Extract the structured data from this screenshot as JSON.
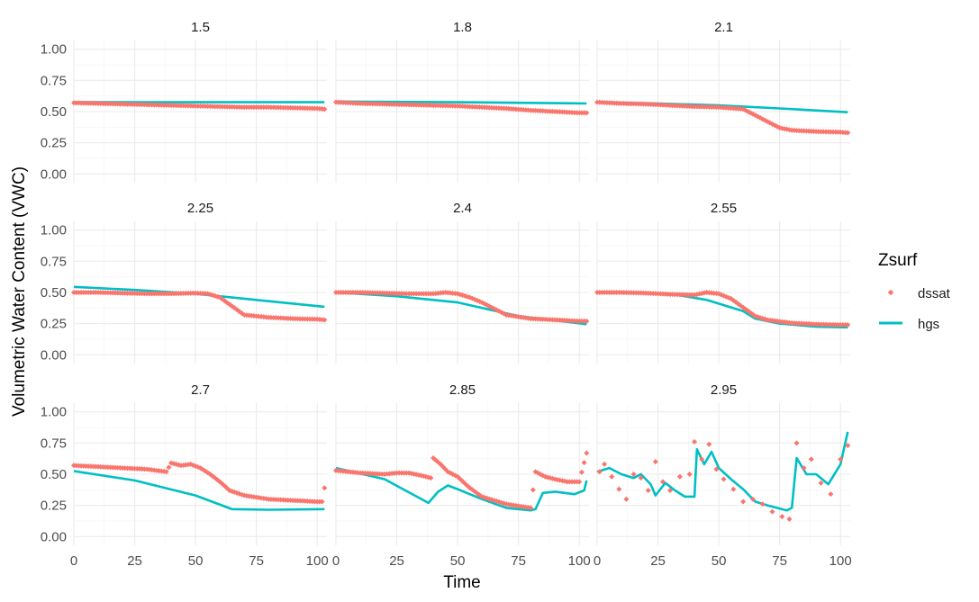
{
  "chart_data": {
    "type": "scatter",
    "xlabel": "Time",
    "ylabel": "Volumetric Water Content (VWC)",
    "xlim": [
      0,
      104
    ],
    "ylim": [
      0,
      1
    ],
    "x_ticks": [
      0,
      25,
      50,
      75,
      100
    ],
    "y_ticks": [
      0,
      0.25,
      0.5,
      0.75,
      1
    ],
    "y_tick_labels": [
      "0.00",
      "0.25",
      "0.50",
      "0.75",
      "1.00"
    ],
    "grid": true,
    "legend": {
      "title": "Zsurf",
      "placement": "right",
      "entries": [
        {
          "label": "dssat",
          "color": "#F8766D",
          "marker": "diamond"
        },
        {
          "label": "hgs",
          "color": "#00BFC4",
          "marker": "line"
        }
      ]
    },
    "panels": [
      {
        "title": "1.5",
        "dssat": [
          [
            0,
            0.57
          ],
          [
            10,
            0.565
          ],
          [
            20,
            0.56
          ],
          [
            30,
            0.555
          ],
          [
            40,
            0.55
          ],
          [
            50,
            0.545
          ],
          [
            60,
            0.54
          ],
          [
            70,
            0.535
          ],
          [
            80,
            0.535
          ],
          [
            90,
            0.53
          ],
          [
            100,
            0.525
          ],
          [
            103,
            0.52
          ]
        ],
        "hgs": [
          [
            0,
            0.575
          ],
          [
            103,
            0.575
          ]
        ]
      },
      {
        "title": "1.8",
        "dssat": [
          [
            0,
            0.575
          ],
          [
            10,
            0.565
          ],
          [
            20,
            0.56
          ],
          [
            30,
            0.555
          ],
          [
            40,
            0.55
          ],
          [
            50,
            0.545
          ],
          [
            60,
            0.535
          ],
          [
            70,
            0.525
          ],
          [
            80,
            0.51
          ],
          [
            90,
            0.5
          ],
          [
            100,
            0.49
          ],
          [
            103,
            0.49
          ]
        ],
        "hgs": [
          [
            0,
            0.58
          ],
          [
            50,
            0.575
          ],
          [
            103,
            0.565
          ]
        ]
      },
      {
        "title": "2.1",
        "dssat": [
          [
            0,
            0.575
          ],
          [
            10,
            0.565
          ],
          [
            20,
            0.56
          ],
          [
            30,
            0.55
          ],
          [
            40,
            0.54
          ],
          [
            50,
            0.535
          ],
          [
            60,
            0.52
          ],
          [
            65,
            0.47
          ],
          [
            70,
            0.42
          ],
          [
            75,
            0.37
          ],
          [
            80,
            0.35
          ],
          [
            90,
            0.34
          ],
          [
            100,
            0.335
          ],
          [
            103,
            0.33
          ]
        ],
        "hgs": [
          [
            0,
            0.575
          ],
          [
            25,
            0.565
          ],
          [
            50,
            0.55
          ],
          [
            75,
            0.525
          ],
          [
            103,
            0.495
          ]
        ]
      },
      {
        "title": "2.25",
        "dssat": [
          [
            0,
            0.5
          ],
          [
            10,
            0.5
          ],
          [
            20,
            0.495
          ],
          [
            30,
            0.49
          ],
          [
            40,
            0.49
          ],
          [
            50,
            0.495
          ],
          [
            55,
            0.49
          ],
          [
            60,
            0.46
          ],
          [
            65,
            0.39
          ],
          [
            70,
            0.32
          ],
          [
            75,
            0.31
          ],
          [
            80,
            0.3
          ],
          [
            90,
            0.29
          ],
          [
            100,
            0.285
          ],
          [
            103,
            0.28
          ]
        ],
        "hgs": [
          [
            0,
            0.545
          ],
          [
            25,
            0.52
          ],
          [
            50,
            0.49
          ],
          [
            75,
            0.44
          ],
          [
            103,
            0.385
          ]
        ]
      },
      {
        "title": "2.4",
        "dssat": [
          [
            0,
            0.5
          ],
          [
            10,
            0.5
          ],
          [
            20,
            0.495
          ],
          [
            30,
            0.49
          ],
          [
            40,
            0.49
          ],
          [
            45,
            0.5
          ],
          [
            50,
            0.49
          ],
          [
            55,
            0.46
          ],
          [
            60,
            0.42
          ],
          [
            65,
            0.37
          ],
          [
            70,
            0.32
          ],
          [
            80,
            0.29
          ],
          [
            90,
            0.28
          ],
          [
            100,
            0.27
          ],
          [
            103,
            0.27
          ]
        ],
        "hgs": [
          [
            0,
            0.5
          ],
          [
            25,
            0.47
          ],
          [
            50,
            0.42
          ],
          [
            75,
            0.31
          ],
          [
            103,
            0.245
          ]
        ]
      },
      {
        "title": "2.55",
        "dssat": [
          [
            0,
            0.5
          ],
          [
            10,
            0.5
          ],
          [
            20,
            0.495
          ],
          [
            30,
            0.485
          ],
          [
            40,
            0.48
          ],
          [
            45,
            0.5
          ],
          [
            50,
            0.49
          ],
          [
            55,
            0.45
          ],
          [
            60,
            0.38
          ],
          [
            65,
            0.31
          ],
          [
            70,
            0.28
          ],
          [
            80,
            0.255
          ],
          [
            90,
            0.245
          ],
          [
            100,
            0.24
          ],
          [
            103,
            0.24
          ]
        ],
        "hgs": [
          [
            0,
            0.505
          ],
          [
            30,
            0.49
          ],
          [
            45,
            0.44
          ],
          [
            60,
            0.35
          ],
          [
            65,
            0.29
          ],
          [
            75,
            0.25
          ],
          [
            90,
            0.225
          ],
          [
            103,
            0.22
          ]
        ]
      },
      {
        "title": "2.7",
        "dssat": [
          [
            0,
            0.57
          ],
          [
            10,
            0.56
          ],
          [
            20,
            0.55
          ],
          [
            30,
            0.54
          ],
          [
            38,
            0.52
          ],
          [
            40,
            0.59
          ],
          [
            44,
            0.57
          ],
          [
            48,
            0.58
          ],
          [
            52,
            0.55
          ],
          [
            56,
            0.5
          ],
          [
            60,
            0.44
          ],
          [
            64,
            0.37
          ],
          [
            70,
            0.33
          ],
          [
            80,
            0.3
          ],
          [
            90,
            0.29
          ],
          [
            100,
            0.28
          ],
          [
            102,
            0.28
          ],
          [
            103,
            0.39
          ]
        ],
        "hgs": [
          [
            0,
            0.525
          ],
          [
            25,
            0.45
          ],
          [
            50,
            0.33
          ],
          [
            65,
            0.22
          ],
          [
            80,
            0.215
          ],
          [
            103,
            0.22
          ]
        ]
      },
      {
        "title": "2.85",
        "dssat": [
          [
            0,
            0.53
          ],
          [
            10,
            0.51
          ],
          [
            20,
            0.5
          ],
          [
            25,
            0.51
          ],
          [
            30,
            0.51
          ],
          [
            35,
            0.49
          ],
          [
            39,
            0.47
          ],
          [
            40,
            0.63
          ],
          [
            43,
            0.58
          ],
          [
            46,
            0.52
          ],
          [
            50,
            0.48
          ],
          [
            55,
            0.39
          ],
          [
            60,
            0.32
          ],
          [
            70,
            0.26
          ],
          [
            80,
            0.23
          ],
          [
            82,
            0.52
          ],
          [
            86,
            0.48
          ],
          [
            90,
            0.46
          ],
          [
            95,
            0.44
          ],
          [
            100,
            0.44
          ],
          [
            103,
            0.67
          ]
        ],
        "hgs": [
          [
            0,
            0.55
          ],
          [
            20,
            0.46
          ],
          [
            38,
            0.27
          ],
          [
            42,
            0.36
          ],
          [
            46,
            0.41
          ],
          [
            50,
            0.38
          ],
          [
            60,
            0.3
          ],
          [
            70,
            0.23
          ],
          [
            80,
            0.21
          ],
          [
            82,
            0.22
          ],
          [
            85,
            0.35
          ],
          [
            90,
            0.36
          ],
          [
            98,
            0.34
          ],
          [
            102,
            0.37
          ],
          [
            103,
            0.45
          ]
        ],
        "dssat_note": ""
      },
      {
        "title": "2.95",
        "dssat": [
          [
            1,
            0.52
          ],
          [
            3,
            0.58
          ],
          [
            6,
            0.48
          ],
          [
            9,
            0.38
          ],
          [
            12,
            0.3
          ],
          [
            15,
            0.5
          ],
          [
            18,
            0.47
          ],
          [
            21,
            0.37
          ],
          [
            24,
            0.6
          ],
          [
            27,
            0.44
          ],
          [
            30,
            0.37
          ],
          [
            34,
            0.48
          ],
          [
            38,
            0.5
          ],
          [
            40,
            0.76
          ],
          [
            43,
            0.62
          ],
          [
            46,
            0.74
          ],
          [
            49,
            0.54
          ],
          [
            52,
            0.46
          ],
          [
            56,
            0.38
          ],
          [
            60,
            0.28
          ],
          [
            64,
            0.3
          ],
          [
            68,
            0.26
          ],
          [
            72,
            0.2
          ],
          [
            76,
            0.16
          ],
          [
            79,
            0.14
          ],
          [
            82,
            0.75
          ],
          [
            85,
            0.55
          ],
          [
            88,
            0.62
          ],
          [
            92,
            0.43
          ],
          [
            96,
            0.34
          ],
          [
            100,
            0.62
          ],
          [
            103,
            0.73
          ]
        ],
        "hgs": [
          [
            0,
            0.52
          ],
          [
            5,
            0.55
          ],
          [
            10,
            0.5
          ],
          [
            15,
            0.47
          ],
          [
            18,
            0.5
          ],
          [
            22,
            0.42
          ],
          [
            24,
            0.33
          ],
          [
            28,
            0.43
          ],
          [
            32,
            0.37
          ],
          [
            36,
            0.32
          ],
          [
            40,
            0.32
          ],
          [
            41,
            0.7
          ],
          [
            44,
            0.58
          ],
          [
            47,
            0.68
          ],
          [
            50,
            0.55
          ],
          [
            55,
            0.46
          ],
          [
            60,
            0.38
          ],
          [
            65,
            0.28
          ],
          [
            70,
            0.25
          ],
          [
            78,
            0.21
          ],
          [
            80,
            0.23
          ],
          [
            82,
            0.63
          ],
          [
            86,
            0.5
          ],
          [
            90,
            0.5
          ],
          [
            95,
            0.42
          ],
          [
            100,
            0.58
          ],
          [
            103,
            0.84
          ]
        ]
      }
    ]
  }
}
